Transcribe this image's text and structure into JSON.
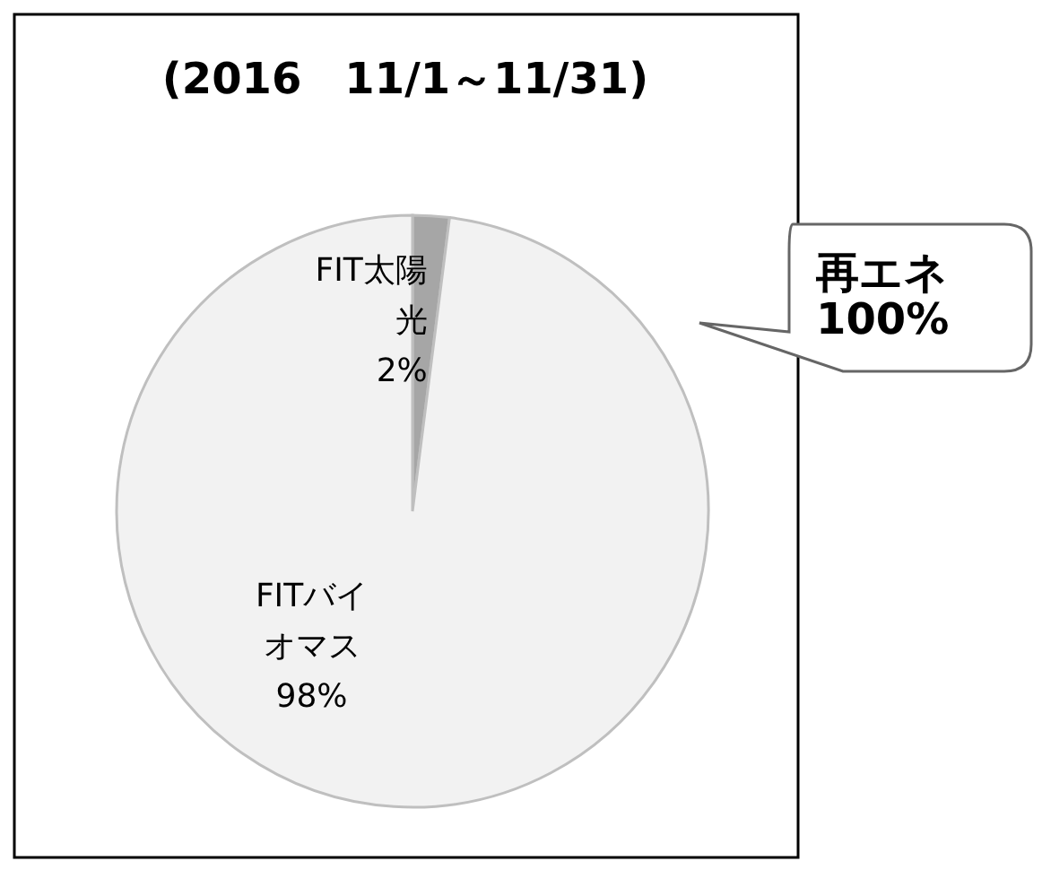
{
  "chart_data": {
    "type": "pie",
    "title": "(2016　11/1～11/31)",
    "categories": [
      "FIT太陽光",
      "FITバイオマス"
    ],
    "values": [
      2,
      98
    ],
    "colors": [
      "#a6a6a6",
      "#f2f2f2"
    ],
    "value_labels": [
      "2%",
      "98%"
    ],
    "annotations": [
      "再エネ\n100%"
    ]
  }
}
